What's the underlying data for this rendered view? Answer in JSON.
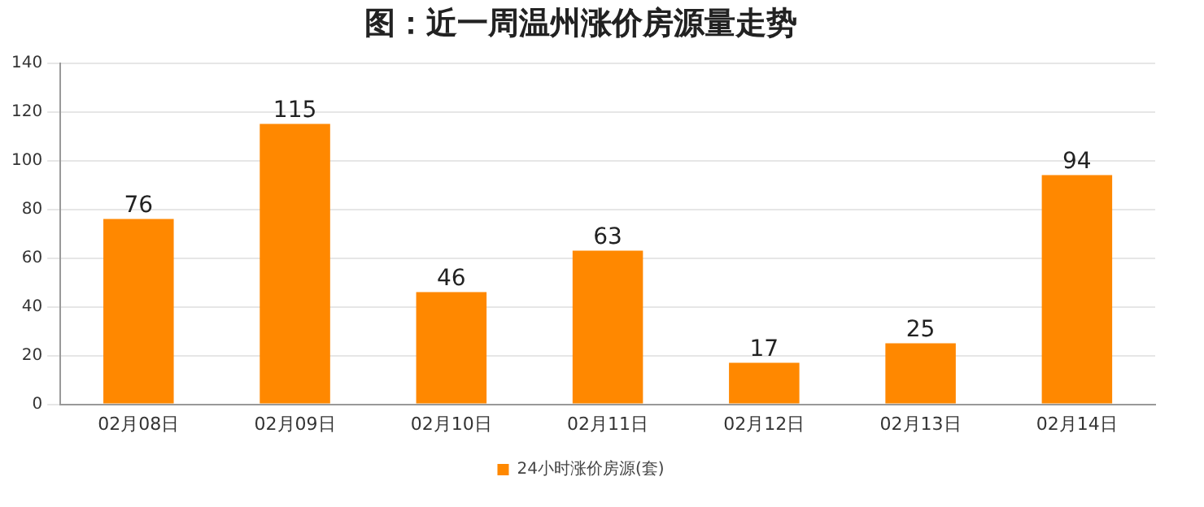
{
  "chart_data": {
    "type": "bar",
    "title": "图：近一周温州涨价房源量走势",
    "categories": [
      "02月08日",
      "02月09日",
      "02月10日",
      "02月11日",
      "02月12日",
      "02月13日",
      "02月14日"
    ],
    "series": [
      {
        "name": "24小时涨价房源(套)",
        "color": "#ff8800",
        "values": [
          76,
          115,
          46,
          63,
          17,
          25,
          94
        ]
      }
    ],
    "ylim": [
      0,
      140
    ],
    "yticks": [
      0,
      20,
      40,
      60,
      80,
      100,
      120,
      140
    ],
    "grid": "y",
    "legend": "bottom",
    "data_labels": true
  }
}
